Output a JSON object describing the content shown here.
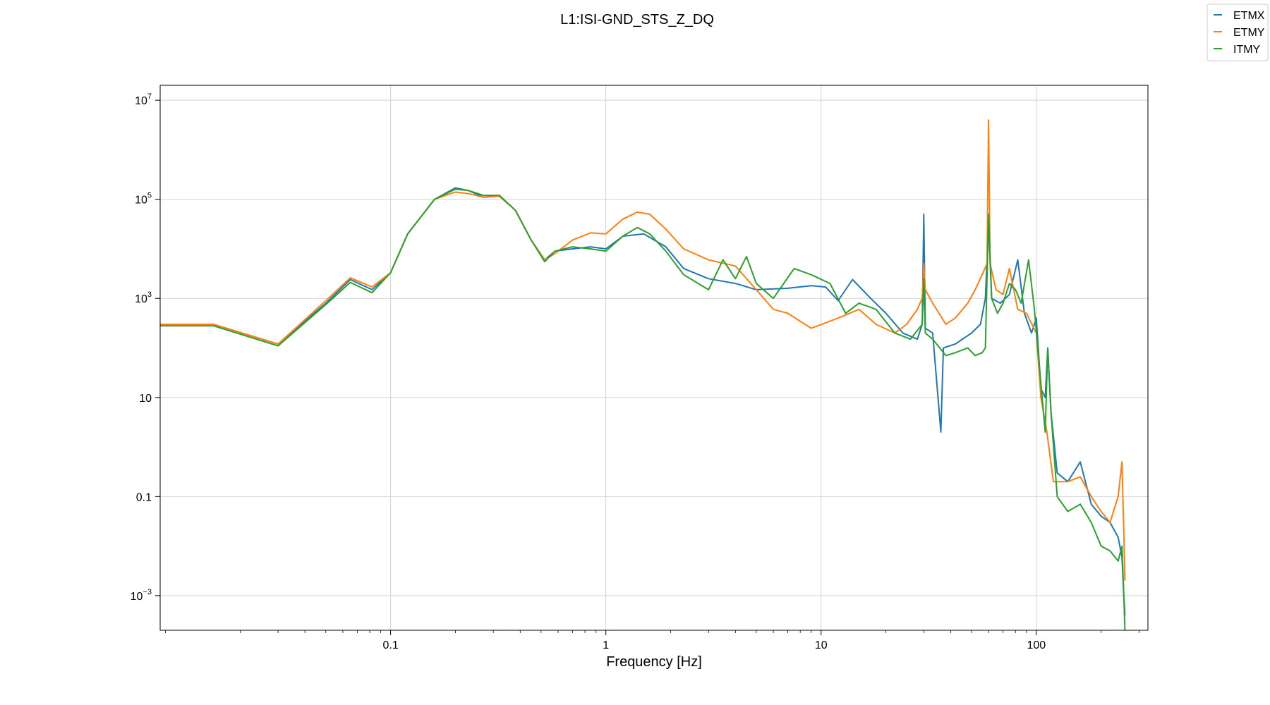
{
  "chart_data": {
    "type": "line",
    "title": "L1:ISI-GND_STS_Z_DQ",
    "xlabel": "Frequency [Hz]",
    "ylabel": "",
    "x_scale": "log",
    "y_scale": "log",
    "xlim": [
      0.0085,
      330
    ],
    "ylim": [
      0.0002,
      20000000
    ],
    "grid": true,
    "legend_position": "top-right",
    "x_ticks": [
      {
        "value": 0.1,
        "label": "0.1"
      },
      {
        "value": 1,
        "label": "1"
      },
      {
        "value": 10,
        "label": "10"
      },
      {
        "value": 100,
        "label": "100"
      }
    ],
    "y_ticks": [
      {
        "value": 10000000,
        "base": "10",
        "exp": "7"
      },
      {
        "value": 100000,
        "base": "10",
        "exp": "5"
      },
      {
        "value": 1000,
        "base": "10",
        "exp": "3"
      },
      {
        "value": 10,
        "base": "10",
        "exp": ""
      },
      {
        "value": 0.1,
        "base": "0.1",
        "exp": ""
      },
      {
        "value": 0.001,
        "base": "10",
        "exp": "−3"
      }
    ],
    "series": [
      {
        "name": "ETMX",
        "color": "#1f77b4",
        "points": [
          [
            0.0085,
            300
          ],
          [
            0.015,
            300
          ],
          [
            0.03,
            120
          ],
          [
            0.05,
            800
          ],
          [
            0.065,
            2400
          ],
          [
            0.082,
            1500
          ],
          [
            0.1,
            3300
          ],
          [
            0.12,
            20000
          ],
          [
            0.16,
            100000
          ],
          [
            0.2,
            170000
          ],
          [
            0.23,
            150000
          ],
          [
            0.27,
            110000
          ],
          [
            0.32,
            120000
          ],
          [
            0.38,
            60000
          ],
          [
            0.45,
            15000
          ],
          [
            0.52,
            6000
          ],
          [
            0.58,
            9000
          ],
          [
            0.7,
            10000
          ],
          [
            0.85,
            11000
          ],
          [
            1.0,
            10000
          ],
          [
            1.2,
            18000
          ],
          [
            1.5,
            20000
          ],
          [
            1.9,
            11000
          ],
          [
            2.3,
            4000
          ],
          [
            3.0,
            2500
          ],
          [
            4.0,
            2000
          ],
          [
            5.0,
            1500
          ],
          [
            7.0,
            1600
          ],
          [
            9.0,
            1800
          ],
          [
            10.5,
            1700
          ],
          [
            12.0,
            900
          ],
          [
            14.0,
            2400
          ],
          [
            17.0,
            1000
          ],
          [
            20.0,
            500
          ],
          [
            24.0,
            200
          ],
          [
            28.0,
            150
          ],
          [
            29.5,
            300
          ],
          [
            30.0,
            50000
          ],
          [
            30.5,
            250
          ],
          [
            33.0,
            200
          ],
          [
            36.0,
            2
          ],
          [
            37.0,
            100
          ],
          [
            42.0,
            120
          ],
          [
            50.0,
            200
          ],
          [
            55.0,
            300
          ],
          [
            58.0,
            1000
          ],
          [
            60.0,
            30000
          ],
          [
            62.0,
            1000
          ],
          [
            68.0,
            800
          ],
          [
            75.0,
            1200
          ],
          [
            82.0,
            6000
          ],
          [
            88.0,
            500
          ],
          [
            95.0,
            200
          ],
          [
            100.0,
            400
          ],
          [
            105.0,
            15
          ],
          [
            110.0,
            10
          ],
          [
            113.0,
            100
          ],
          [
            117.0,
            5
          ],
          [
            125.0,
            0.3
          ],
          [
            140.0,
            0.2
          ],
          [
            160.0,
            0.5
          ],
          [
            180.0,
            0.07
          ],
          [
            200.0,
            0.04
          ],
          [
            220.0,
            0.03
          ],
          [
            240.0,
            0.015
          ],
          [
            250.0,
            0.006
          ],
          [
            255.0,
            0.001
          ],
          [
            258.0,
            0.0004
          ]
        ]
      },
      {
        "name": "ETMY",
        "color": "#ff7f0e",
        "points": [
          [
            0.0085,
            300
          ],
          [
            0.015,
            300
          ],
          [
            0.03,
            120
          ],
          [
            0.05,
            900
          ],
          [
            0.065,
            2600
          ],
          [
            0.082,
            1700
          ],
          [
            0.1,
            3300
          ],
          [
            0.12,
            20000
          ],
          [
            0.16,
            100000
          ],
          [
            0.2,
            140000
          ],
          [
            0.23,
            130000
          ],
          [
            0.27,
            110000
          ],
          [
            0.32,
            115000
          ],
          [
            0.38,
            60000
          ],
          [
            0.45,
            15000
          ],
          [
            0.52,
            6000
          ],
          [
            0.58,
            8000
          ],
          [
            0.7,
            15000
          ],
          [
            0.85,
            21000
          ],
          [
            1.0,
            20000
          ],
          [
            1.2,
            40000
          ],
          [
            1.4,
            55000
          ],
          [
            1.6,
            50000
          ],
          [
            1.9,
            25000
          ],
          [
            2.3,
            10000
          ],
          [
            3.0,
            6000
          ],
          [
            4.0,
            4500
          ],
          [
            5.0,
            1500
          ],
          [
            6.0,
            600
          ],
          [
            7.0,
            500
          ],
          [
            9.0,
            250
          ],
          [
            12.0,
            400
          ],
          [
            15.0,
            600
          ],
          [
            18.0,
            300
          ],
          [
            22.0,
            200
          ],
          [
            25.0,
            300
          ],
          [
            28.0,
            600
          ],
          [
            29.5,
            1000
          ],
          [
            30.0,
            5000
          ],
          [
            30.5,
            1500
          ],
          [
            33.0,
            800
          ],
          [
            38.0,
            300
          ],
          [
            42.0,
            400
          ],
          [
            48.0,
            800
          ],
          [
            52.0,
            1500
          ],
          [
            56.0,
            3000
          ],
          [
            59.0,
            5000
          ],
          [
            60.0,
            4000000
          ],
          [
            61.0,
            5000
          ],
          [
            65.0,
            1500
          ],
          [
            70.0,
            1200
          ],
          [
            75.0,
            4000
          ],
          [
            82.0,
            600
          ],
          [
            90.0,
            500
          ],
          [
            100.0,
            200
          ],
          [
            105.0,
            10
          ],
          [
            112.0,
            2
          ],
          [
            120.0,
            0.2
          ],
          [
            140.0,
            0.2
          ],
          [
            160.0,
            0.25
          ],
          [
            180.0,
            0.1
          ],
          [
            200.0,
            0.05
          ],
          [
            220.0,
            0.03
          ],
          [
            240.0,
            0.1
          ],
          [
            250.0,
            0.5
          ],
          [
            255.0,
            0.02
          ],
          [
            258.0,
            0.002
          ]
        ]
      },
      {
        "name": "ITMY",
        "color": "#2ca02c",
        "points": [
          [
            0.0085,
            280
          ],
          [
            0.015,
            280
          ],
          [
            0.03,
            110
          ],
          [
            0.05,
            750
          ],
          [
            0.065,
            2100
          ],
          [
            0.082,
            1300
          ],
          [
            0.1,
            3300
          ],
          [
            0.12,
            20000
          ],
          [
            0.16,
            100000
          ],
          [
            0.2,
            160000
          ],
          [
            0.23,
            150000
          ],
          [
            0.27,
            120000
          ],
          [
            0.32,
            120000
          ],
          [
            0.38,
            60000
          ],
          [
            0.45,
            15000
          ],
          [
            0.52,
            5500
          ],
          [
            0.58,
            9000
          ],
          [
            0.7,
            11000
          ],
          [
            0.85,
            10000
          ],
          [
            1.0,
            9000
          ],
          [
            1.2,
            18000
          ],
          [
            1.4,
            27000
          ],
          [
            1.6,
            20000
          ],
          [
            1.9,
            9000
          ],
          [
            2.3,
            3000
          ],
          [
            3.0,
            1500
          ],
          [
            3.5,
            6000
          ],
          [
            4.0,
            2500
          ],
          [
            4.5,
            7000
          ],
          [
            5.0,
            2000
          ],
          [
            6.0,
            1000
          ],
          [
            7.5,
            4000
          ],
          [
            9.0,
            3000
          ],
          [
            11.0,
            2000
          ],
          [
            13.0,
            500
          ],
          [
            15.0,
            800
          ],
          [
            18.0,
            600
          ],
          [
            22.0,
            200
          ],
          [
            26.0,
            150
          ],
          [
            29.5,
            300
          ],
          [
            30.0,
            2500
          ],
          [
            30.5,
            200
          ],
          [
            33.0,
            150
          ],
          [
            38.0,
            70
          ],
          [
            42.0,
            80
          ],
          [
            48.0,
            100
          ],
          [
            52.0,
            70
          ],
          [
            56.0,
            80
          ],
          [
            58.0,
            100
          ],
          [
            60.0,
            50000
          ],
          [
            62.0,
            1000
          ],
          [
            66.0,
            500
          ],
          [
            70.0,
            800
          ],
          [
            75.0,
            2000
          ],
          [
            80.0,
            1500
          ],
          [
            85.0,
            800
          ],
          [
            92.0,
            6000
          ],
          [
            98.0,
            600
          ],
          [
            103.0,
            50
          ],
          [
            110.0,
            2
          ],
          [
            113.0,
            100
          ],
          [
            117.0,
            5
          ],
          [
            125.0,
            0.1
          ],
          [
            140.0,
            0.05
          ],
          [
            160.0,
            0.07
          ],
          [
            180.0,
            0.03
          ],
          [
            200.0,
            0.01
          ],
          [
            220.0,
            0.008
          ],
          [
            240.0,
            0.005
          ],
          [
            250.0,
            0.01
          ],
          [
            255.0,
            0.001
          ],
          [
            258.0,
            0.0002
          ]
        ]
      }
    ]
  }
}
